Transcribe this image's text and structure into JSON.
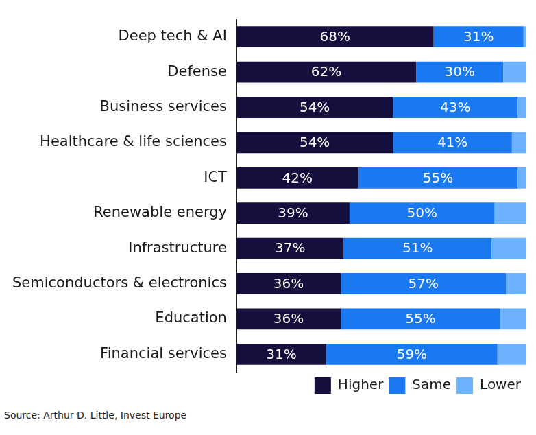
{
  "chart_data": {
    "type": "bar",
    "orientation": "horizontal",
    "stacked": true,
    "categories": [
      "Deep tech & AI",
      "Defense",
      "Business services",
      "Healthcare & life sciences",
      "ICT",
      "Renewable energy",
      "Infrastructure",
      "Semiconductors & electronics",
      "Education",
      "Financial services"
    ],
    "series": [
      {
        "name": "Higher",
        "color": "#140f3c",
        "values": [
          68,
          62,
          54,
          54,
          42,
          39,
          37,
          36,
          36,
          31
        ],
        "value_labels": [
          "68%",
          "62%",
          "54%",
          "54%",
          "42%",
          "39%",
          "37%",
          "36%",
          "36%",
          "31%"
        ]
      },
      {
        "name": "Same",
        "color": "#1a78f0",
        "values": [
          31,
          30,
          43,
          41,
          55,
          50,
          51,
          57,
          55,
          59
        ],
        "value_labels": [
          "31%",
          "30%",
          "43%",
          "41%",
          "55%",
          "50%",
          "51%",
          "57%",
          "55%",
          "59%"
        ]
      },
      {
        "name": "Lower",
        "color": "#6cb2ff",
        "values": [
          1,
          8,
          3,
          5,
          3,
          11,
          12,
          7,
          9,
          10
        ]
      }
    ],
    "xlim": [
      0,
      100
    ],
    "data_labels": true,
    "tick_labels": "y",
    "legend": "bottom",
    "grid": false,
    "source": "Source: Arthur D. Little, Invest Europe"
  }
}
